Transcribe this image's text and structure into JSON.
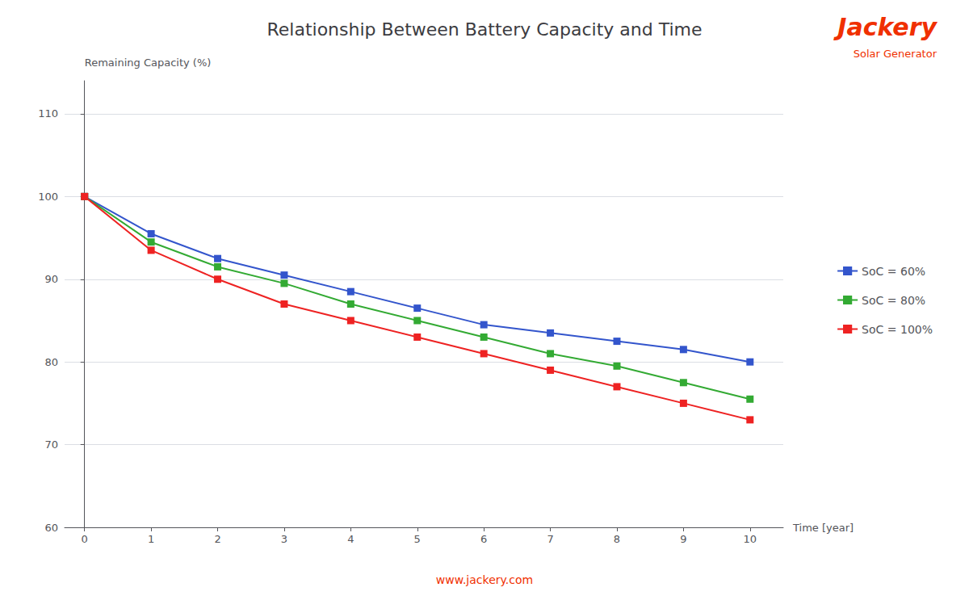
{
  "chart_data": {
    "type": "line",
    "title": "Relationship Between Battery Capacity and Time",
    "xlabel": "Time [year]",
    "ylabel": "Remaining Capacity (%)",
    "x": [
      0,
      1,
      2,
      3,
      4,
      5,
      6,
      7,
      8,
      9,
      10
    ],
    "series": [
      {
        "name": "SoC = 60%",
        "color": "#3355cc",
        "values": [
          100,
          95.5,
          92.5,
          90.5,
          88.5,
          86.5,
          84.5,
          83.5,
          82.5,
          81.5,
          80.0
        ]
      },
      {
        "name": "SoC = 80%",
        "color": "#33aa33",
        "values": [
          100,
          94.5,
          91.5,
          89.5,
          87.0,
          85.0,
          83.0,
          81.0,
          79.5,
          77.5,
          75.5
        ]
      },
      {
        "name": "SoC = 100%",
        "color": "#ee2222",
        "values": [
          100,
          93.5,
          90.0,
          87.0,
          85.0,
          83.0,
          81.0,
          79.0,
          77.0,
          75.0,
          73.0
        ]
      }
    ],
    "xlim": [
      -0.3,
      10.5
    ],
    "xticks": [
      0,
      1,
      2,
      3,
      4,
      5,
      6,
      7,
      8,
      9,
      10
    ],
    "ylim": [
      60,
      114
    ],
    "yticks": [
      60,
      70,
      80,
      90,
      100,
      110
    ],
    "marker": "square",
    "grid": true,
    "legend": "right",
    "annotations": [
      {
        "text": "www.jackery.com",
        "color": "#f03000"
      },
      {
        "text": "Jackery",
        "color": "#f03000"
      },
      {
        "text": "Solar Generator",
        "color": "#f03000"
      }
    ]
  }
}
